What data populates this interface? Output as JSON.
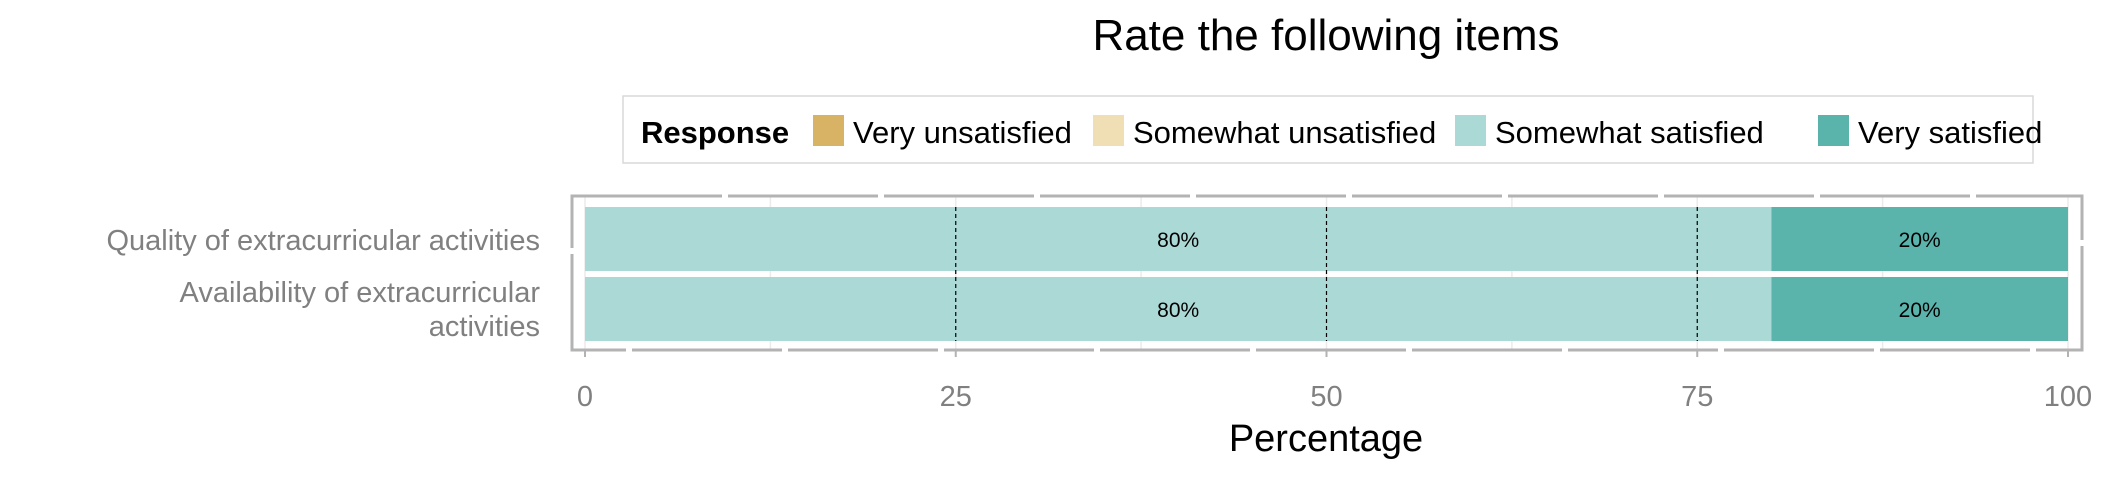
{
  "chart_data": {
    "type": "bar",
    "orientation": "horizontal",
    "stacked": true,
    "title": "Rate the following items",
    "xlabel": "Percentage",
    "ylabel": "",
    "xlim": [
      0,
      100
    ],
    "xticks": [
      "0",
      "25",
      "50",
      "75",
      "100"
    ],
    "categories": [
      [
        "Quality of extracurricular activities"
      ],
      [
        "Availability of extracurricular",
        "activities"
      ]
    ],
    "legend": {
      "title": "Response",
      "position": "top",
      "entries": [
        {
          "label": "Very unsatisfied",
          "color": "#d8b365"
        },
        {
          "label": "Somewhat unsatisfied",
          "color": "#f0deb4"
        },
        {
          "label": "Somewhat satisfied",
          "color": "#abd9d6"
        },
        {
          "label": "Very satisfied",
          "color": "#5ab4ac"
        }
      ]
    },
    "series": [
      {
        "name": "Very unsatisfied",
        "values": [
          0,
          0
        ],
        "labels": [
          "",
          ""
        ]
      },
      {
        "name": "Somewhat unsatisfied",
        "values": [
          0,
          0
        ],
        "labels": [
          "",
          ""
        ]
      },
      {
        "name": "Somewhat satisfied",
        "values": [
          80,
          80
        ],
        "labels": [
          "80%",
          "80%"
        ]
      },
      {
        "name": "Very satisfied",
        "values": [
          20,
          20
        ],
        "labels": [
          "20%",
          "20%"
        ]
      }
    ],
    "grid": true,
    "reference_lines": [
      25,
      50,
      75
    ]
  }
}
